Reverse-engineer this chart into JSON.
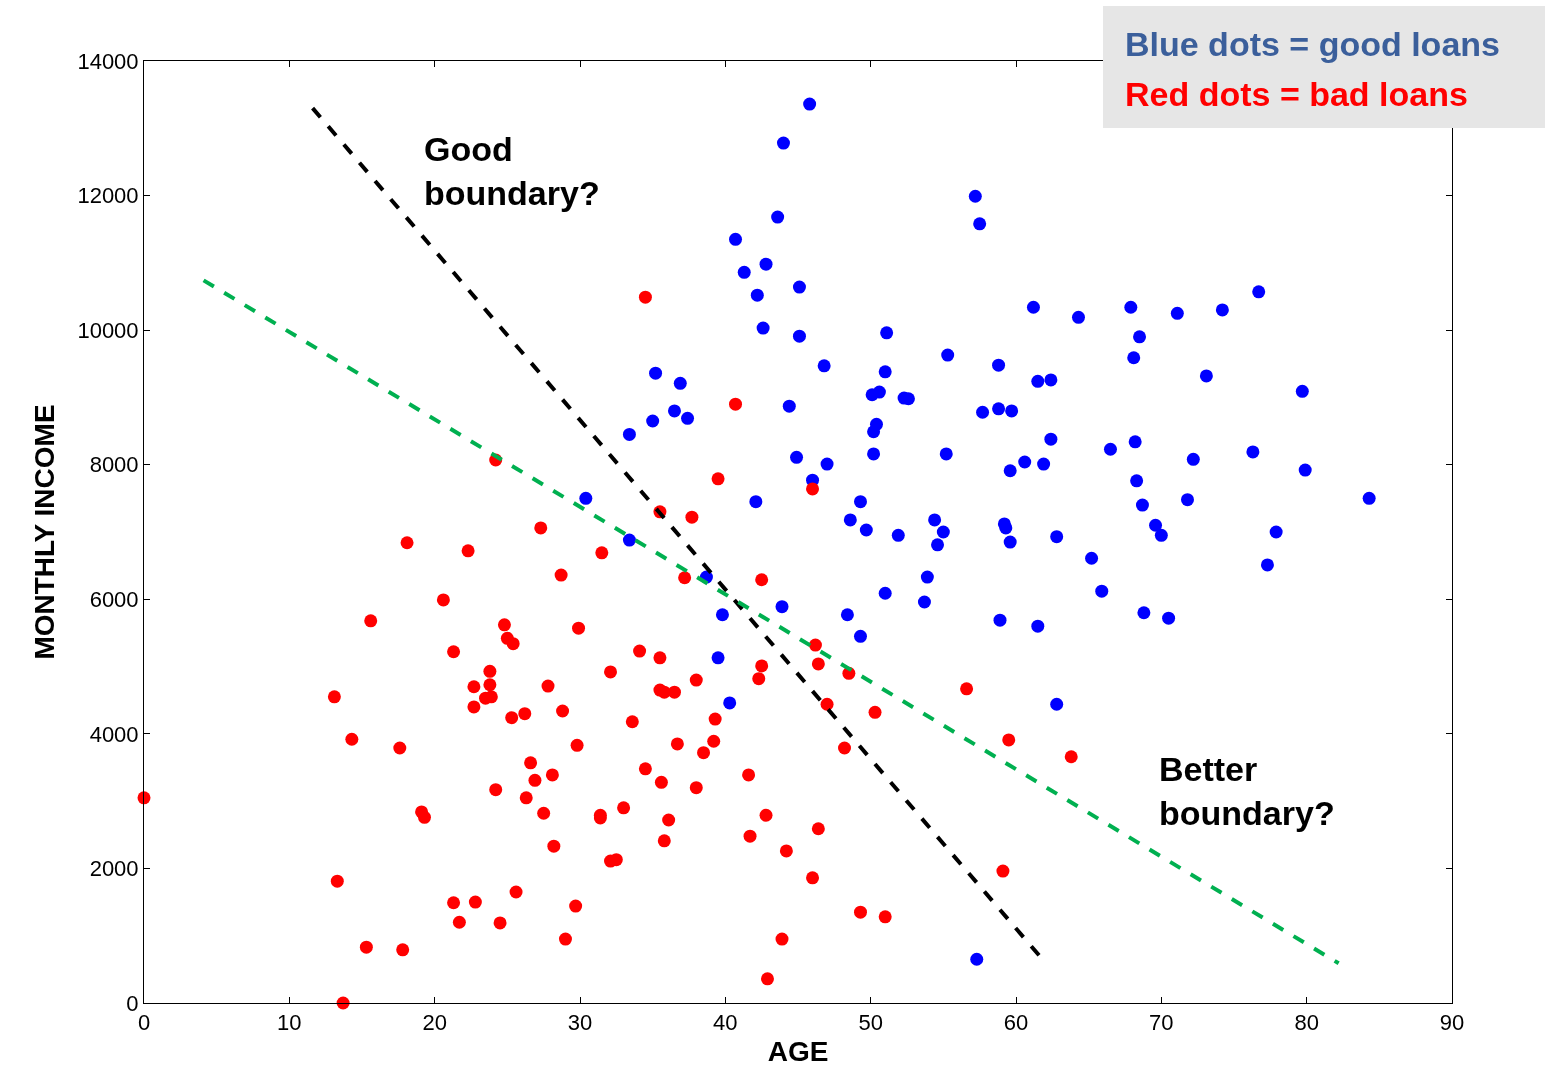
{
  "chart_data": {
    "type": "scatter",
    "xlabel": "AGE",
    "ylabel": "MONTHLY INCOME",
    "xlim": [
      0,
      90
    ],
    "xticks": [
      0,
      10,
      20,
      30,
      40,
      50,
      60,
      70,
      80,
      90
    ],
    "ylim": [
      0,
      14000
    ],
    "yticks": [
      0,
      2000,
      4000,
      6000,
      8000,
      10000,
      12000,
      14000
    ],
    "grid": false,
    "annotations": [
      "Good\nboundary?",
      "Better\nboundary?",
      "Blue dots = good loans",
      "Red dots = bad loans"
    ],
    "series": [
      {
        "color": "#0000ff",
        "marker": "circle",
        "x": [
          30.4,
          33.4,
          33.4,
          35.2,
          35.0,
          36.5,
          36.9,
          37.4,
          38.7,
          39.5,
          39.8,
          40.3,
          40.7,
          41.3,
          42.2,
          42.8,
          42.6,
          42.1,
          43.6,
          44.0,
          43.9,
          44.4,
          45.1,
          45.1,
          44.9,
          45.8,
          46.0,
          46.8,
          47.0,
          48.4,
          48.6,
          49.3,
          49.3,
          49.7,
          50.1,
          50.6,
          50.2,
          50.2,
          50.4,
          51.0,
          51.1,
          51.0,
          51.9,
          52.3,
          52.6,
          53.7,
          53.9,
          54.4,
          54.6,
          55.0,
          55.2,
          55.3,
          57.2,
          57.5,
          57.7,
          57.3,
          58.8,
          58.8,
          58.9,
          59.2,
          59.3,
          59.6,
          59.7,
          59.6,
          60.6,
          61.2,
          61.5,
          61.5,
          61.9,
          62.4,
          62.4,
          62.8,
          62.8,
          64.3,
          65.2,
          65.9,
          66.5,
          67.9,
          68.1,
          68.2,
          68.3,
          68.5,
          68.7,
          68.8,
          69.6,
          70.0,
          70.5,
          71.1,
          71.8,
          72.2,
          73.1,
          74.2,
          76.3,
          76.7,
          77.3,
          77.9,
          79.7,
          79.9,
          84.3
        ],
        "values": [
          7500,
          8450,
          6880,
          9360,
          8650,
          8800,
          9210,
          8690,
          6330,
          5130,
          5770,
          4460,
          11350,
          10860,
          10520,
          10980,
          10030,
          7450,
          11680,
          12780,
          5890,
          8870,
          10640,
          9910,
          8110,
          13360,
          7770,
          9470,
          8010,
          5770,
          7180,
          7450,
          5450,
          7030,
          9040,
          9080,
          8490,
          8160,
          8600,
          9380,
          9960,
          6090,
          6950,
          8990,
          8980,
          5960,
          6330,
          7180,
          6810,
          7000,
          8160,
          9630,
          11990,
          11580,
          8780,
          650,
          9480,
          8830,
          5690,
          7120,
          7060,
          6850,
          8800,
          7910,
          8040,
          10340,
          9240,
          5600,
          8010,
          9260,
          8380,
          6930,
          4440,
          10190,
          6610,
          6120,
          8230,
          10340,
          9590,
          8340,
          7760,
          9900,
          7400,
          5800,
          7100,
          6950,
          5720,
          10250,
          7480,
          8080,
          9320,
          10300,
          8190,
          10570,
          6510,
          7000,
          9090,
          7920,
          7500
        ]
      },
      {
        "color": "#ff0000",
        "marker": "circle",
        "x": [
          0,
          13.1,
          13.3,
          13.7,
          14.3,
          15.3,
          15.6,
          17.6,
          17.8,
          18.1,
          19.1,
          19.3,
          20.6,
          21.3,
          21.3,
          21.7,
          22.3,
          22.7,
          22.7,
          22.8,
          23.5,
          23.8,
          23.8,
          23.9,
          24.2,
          24.2,
          24.5,
          24.8,
          25.0,
          25.4,
          25.3,
          25.6,
          26.2,
          26.3,
          26.6,
          26.9,
          27.3,
          27.5,
          27.8,
          28.1,
          28.2,
          28.7,
          28.8,
          29.0,
          29.7,
          29.8,
          29.9,
          31.4,
          31.4,
          31.5,
          32.1,
          32.1,
          32.5,
          33.0,
          33.6,
          34.1,
          34.5,
          34.5,
          35.5,
          35.5,
          35.5,
          35.6,
          35.8,
          35.8,
          36.1,
          36.5,
          36.7,
          37.2,
          37.7,
          38.0,
          38.0,
          38.5,
          39.2,
          39.3,
          39.5,
          40.7,
          41.6,
          41.7,
          42.3,
          42.5,
          42.5,
          42.8,
          42.9,
          43.9,
          44.2,
          46.0,
          46.0,
          46.2,
          46.4,
          46.4,
          47.0,
          48.2,
          48.5,
          49.3,
          50.3,
          51.0,
          56.6,
          59.1,
          59.5,
          63.8
        ],
        "values": [
          3050,
          4550,
          1810,
          0,
          3920,
          830,
          5680,
          3790,
          790,
          6840,
          2840,
          2760,
          5990,
          5220,
          1490,
          1200,
          6720,
          4700,
          4400,
          1500,
          4530,
          4930,
          4730,
          4550,
          3170,
          8070,
          1190,
          5620,
          5420,
          5340,
          4240,
          1650,
          4300,
          3050,
          3570,
          3310,
          7060,
          2820,
          4710,
          3390,
          2330,
          6360,
          4340,
          950,
          1440,
          3830,
          5570,
          2790,
          2750,
          6690,
          4920,
          2110,
          2130,
          2900,
          4180,
          5230,
          10490,
          3480,
          7300,
          5130,
          4650,
          3280,
          4620,
          2410,
          2720,
          4620,
          3850,
          6320,
          7220,
          4800,
          3200,
          3720,
          3890,
          4220,
          7790,
          8900,
          3390,
          2480,
          4820,
          5010,
          6290,
          2790,
          360,
          950,
          2260,
          7640,
          1860,
          5320,
          5040,
          2590,
          4440,
          3790,
          4900,
          1350,
          4320,
          1280,
          4670,
          1960,
          3910,
          3660
        ]
      },
      {
        "type": "line",
        "line_style": "dashed",
        "marker": "none",
        "color": "#000000",
        "x": [
          11.6,
          61.7
        ],
        "values": [
          13300,
          680
        ]
      },
      {
        "type": "line",
        "line_style": "dashed",
        "marker": "none",
        "color": "#00b050",
        "x": [
          4.1,
          82.2
        ],
        "values": [
          10740,
          590
        ]
      }
    ]
  }
}
